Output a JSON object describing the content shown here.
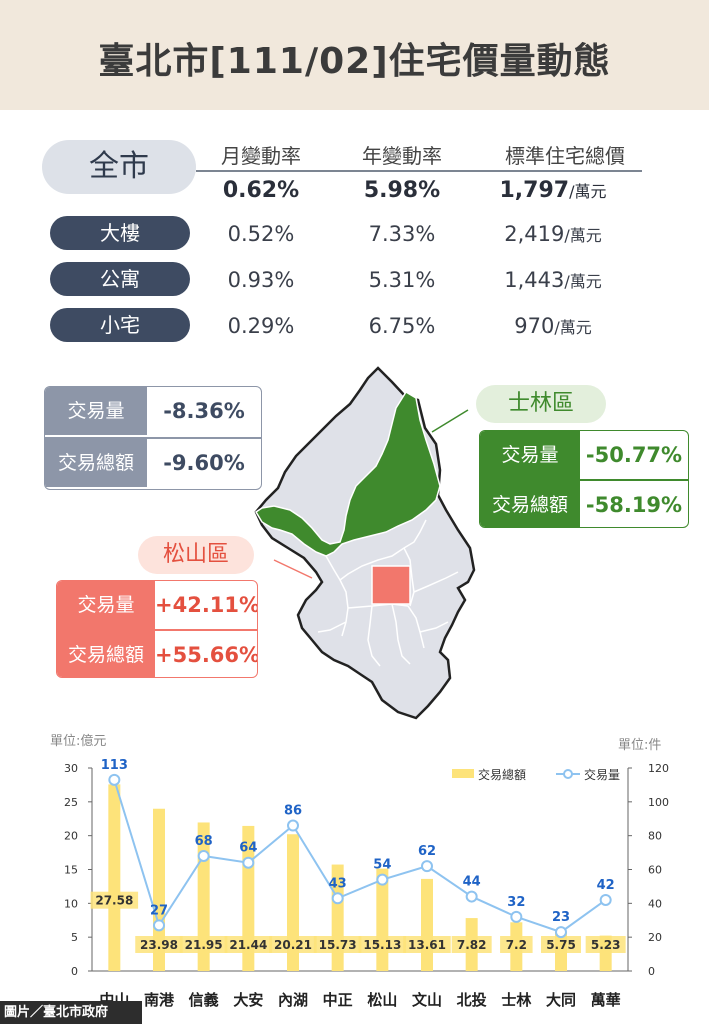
{
  "header": {
    "title": "臺北市[111/02]住宅價量動態"
  },
  "table": {
    "columns": [
      "月變動率",
      "年變動率",
      "標準住宅總價"
    ],
    "total_label": "全市",
    "total": {
      "monthly": "0.62%",
      "yearly": "5.98%",
      "price": "1,797",
      "unit": "/萬元"
    },
    "rows": [
      {
        "label": "大樓",
        "monthly": "0.52%",
        "yearly": "7.33%",
        "price": "2,419",
        "unit": "/萬元"
      },
      {
        "label": "公寓",
        "monthly": "0.93%",
        "yearly": "5.31%",
        "price": "1,443",
        "unit": "/萬元"
      },
      {
        "label": "小宅",
        "monthly": "0.29%",
        "yearly": "6.75%",
        "price": "970",
        "unit": "/萬元"
      }
    ]
  },
  "citywide_box": {
    "vol_label": "交易量",
    "vol": "-8.36%",
    "amt_label": "交易總額",
    "amt": "-9.60%"
  },
  "shilin_box": {
    "district": "士林區",
    "vol_label": "交易量",
    "vol": "-50.77%",
    "amt_label": "交易總額",
    "amt": "-58.19%"
  },
  "songshan_box": {
    "district": "松山區",
    "vol_label": "交易量",
    "vol": "+42.11%",
    "amt_label": "交易總額",
    "amt": "+55.66%"
  },
  "colors": {
    "shilin": "#3f8a2d",
    "songshan": "#f2776c",
    "navy": "#3e4b62",
    "map_gray": "#dfe1e8",
    "bar": "#fde37a",
    "line": "#8ec3f0",
    "point_label": "#1f63c6"
  },
  "chart_data": {
    "type": "bar+line",
    "categories": [
      "中山",
      "南港",
      "信義",
      "大安",
      "內湖",
      "中正",
      "松山",
      "文山",
      "北投",
      "士林",
      "大同",
      "萬華"
    ],
    "series": [
      {
        "name": "交易總額",
        "type": "bar",
        "axis": "left",
        "values": [
          27.58,
          23.98,
          21.95,
          21.44,
          20.21,
          15.73,
          15.13,
          13.61,
          7.82,
          7.2,
          5.75,
          5.23
        ]
      },
      {
        "name": "交易量",
        "type": "line",
        "axis": "right",
        "values": [
          113,
          27,
          68,
          64,
          86,
          43,
          54,
          62,
          44,
          32,
          23,
          42
        ]
      }
    ],
    "left_axis": {
      "label": "單位:億元",
      "ticks": [
        0,
        5,
        10,
        15,
        20,
        25,
        30
      ],
      "ylim": [
        0,
        30
      ]
    },
    "right_axis": {
      "label": "單位:件",
      "ticks": [
        0,
        20,
        40,
        60,
        80,
        100,
        120
      ],
      "ylim": [
        0,
        120
      ]
    },
    "legend_position": "top-right"
  },
  "credit": "圖片／臺北市政府"
}
